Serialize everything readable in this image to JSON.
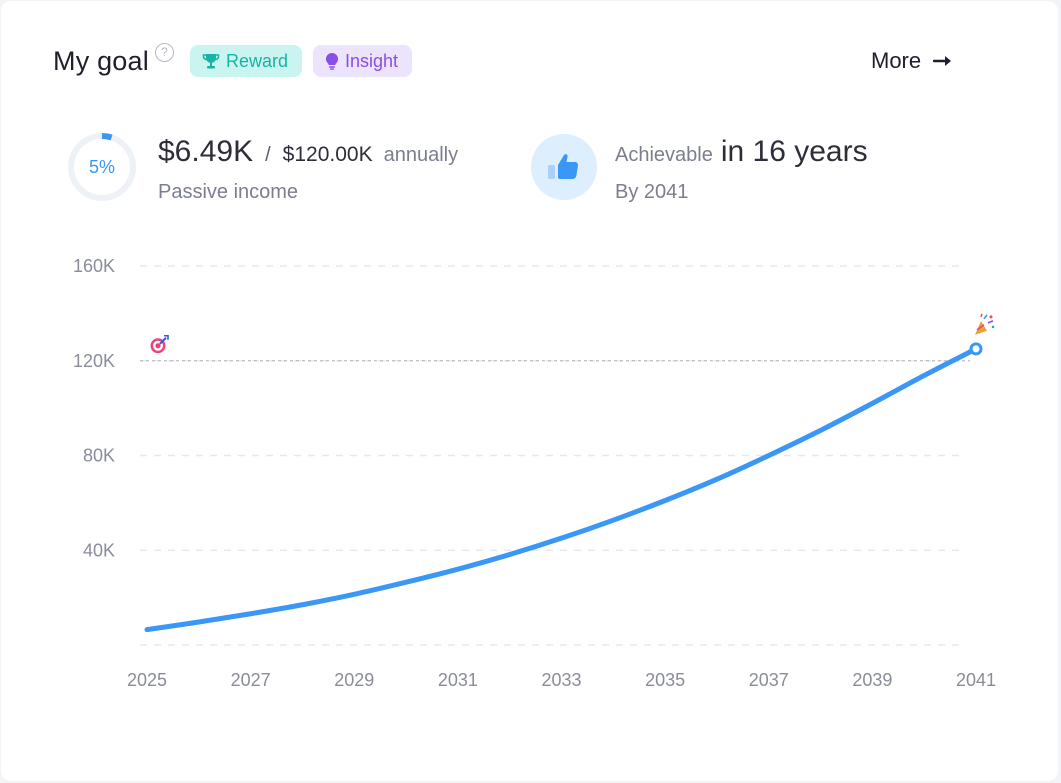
{
  "header": {
    "title": "My goal",
    "help_glyph": "?",
    "reward_label": "Reward",
    "insight_label": "Insight",
    "more_label": "More"
  },
  "progress": {
    "percent_label": "5%",
    "fraction": 0.05,
    "current": "$6.49K",
    "separator": "/",
    "target": "$120.00K",
    "period": "annually",
    "subtitle": "Passive income"
  },
  "achievable": {
    "label": "Achievable",
    "years": "in 16 years",
    "by": "By 2041"
  },
  "icons": {
    "help": "question-circle-icon",
    "reward": "trophy-icon",
    "insight": "lightbulb-icon",
    "more": "arrow-right-icon",
    "achievable": "thumbs-up-icon",
    "goal_marker": "target-icon",
    "end_marker": "party-popper-icon"
  },
  "colors": {
    "line": "#3a97f5",
    "reward_bg": "#c9f4f0",
    "reward_text": "#19b3a6",
    "insight_bg": "#ece3fd",
    "insight_text": "#8a4ee8",
    "ring_track": "#eef1f5",
    "ring_fill": "#3a97f5"
  },
  "chart_data": {
    "type": "line",
    "x_ticks": [
      "2025",
      "2027",
      "2029",
      "2031",
      "2033",
      "2035",
      "2037",
      "2039",
      "2041"
    ],
    "y_ticks": [
      "160K",
      "120K",
      "80K",
      "40K"
    ],
    "ylim": [
      0,
      160000
    ],
    "xlim": [
      2025,
      2041
    ],
    "grid": true,
    "goal_line": 120000,
    "series": [
      {
        "x": [
          2025,
          2026,
          2027,
          2028,
          2029,
          2030,
          2031,
          2032,
          2033,
          2034,
          2035,
          2036,
          2037,
          2038,
          2039,
          2040,
          2041
        ],
        "y": [
          6490,
          9700,
          13200,
          17000,
          21400,
          26500,
          32000,
          38200,
          45100,
          52700,
          61000,
          70000,
          80000,
          90600,
          102000,
          113800,
          125000
        ]
      }
    ]
  }
}
